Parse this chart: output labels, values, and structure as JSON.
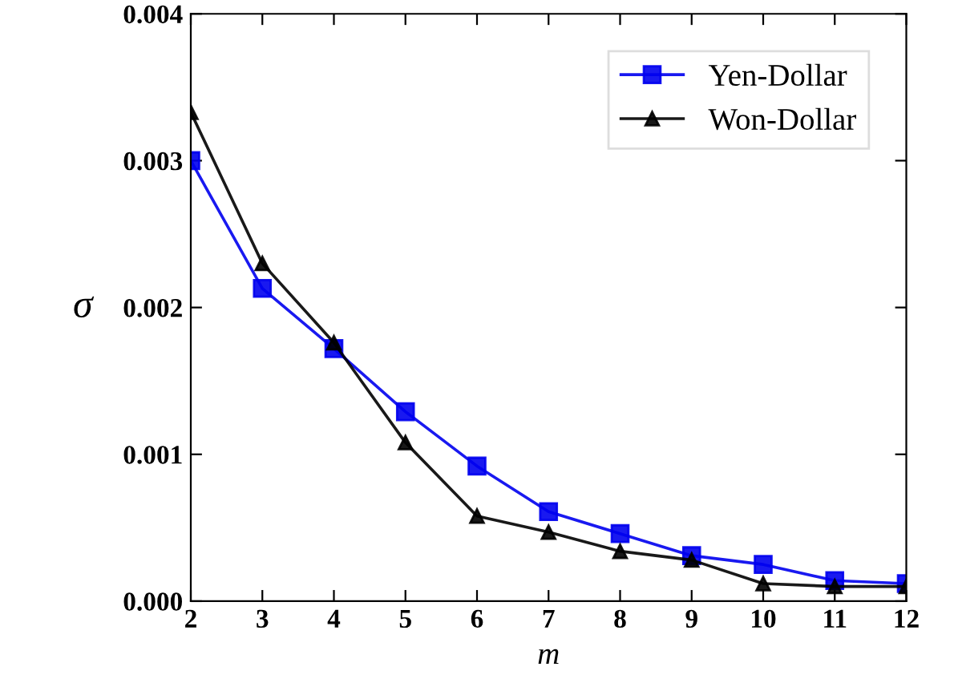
{
  "chart_data": {
    "type": "line",
    "xlabel": "m",
    "ylabel": "σ",
    "x": [
      2,
      3,
      4,
      5,
      6,
      7,
      8,
      9,
      10,
      11,
      12
    ],
    "xlim": [
      2,
      12
    ],
    "xticks": [
      2,
      3,
      4,
      5,
      6,
      7,
      8,
      9,
      10,
      11,
      12
    ],
    "ylim": [
      0,
      0.004
    ],
    "yticks": [
      {
        "value": 0,
        "label": "0.000"
      },
      {
        "value": 0.001,
        "label": "0.001"
      },
      {
        "value": 0.002,
        "label": "0.002"
      },
      {
        "value": 0.003,
        "label": "0.003"
      },
      {
        "value": 0.004,
        "label": "0.004"
      }
    ],
    "legend": "top right",
    "grid": false,
    "series": [
      {
        "name": "Yen-Dollar",
        "color": "#0000ee",
        "marker": "square",
        "values": [
          0.003,
          0.00213,
          0.00172,
          0.00129,
          0.00092,
          0.00061,
          0.00046,
          0.00031,
          0.00025,
          0.00014,
          0.00012
        ]
      },
      {
        "name": "Won-Dollar",
        "color": "#000000",
        "marker": "triangle",
        "values": [
          0.00333,
          0.0023,
          0.00176,
          0.00108,
          0.00058,
          0.00047,
          0.00034,
          0.00028,
          0.00012,
          0.0001,
          0.0001
        ]
      }
    ]
  }
}
